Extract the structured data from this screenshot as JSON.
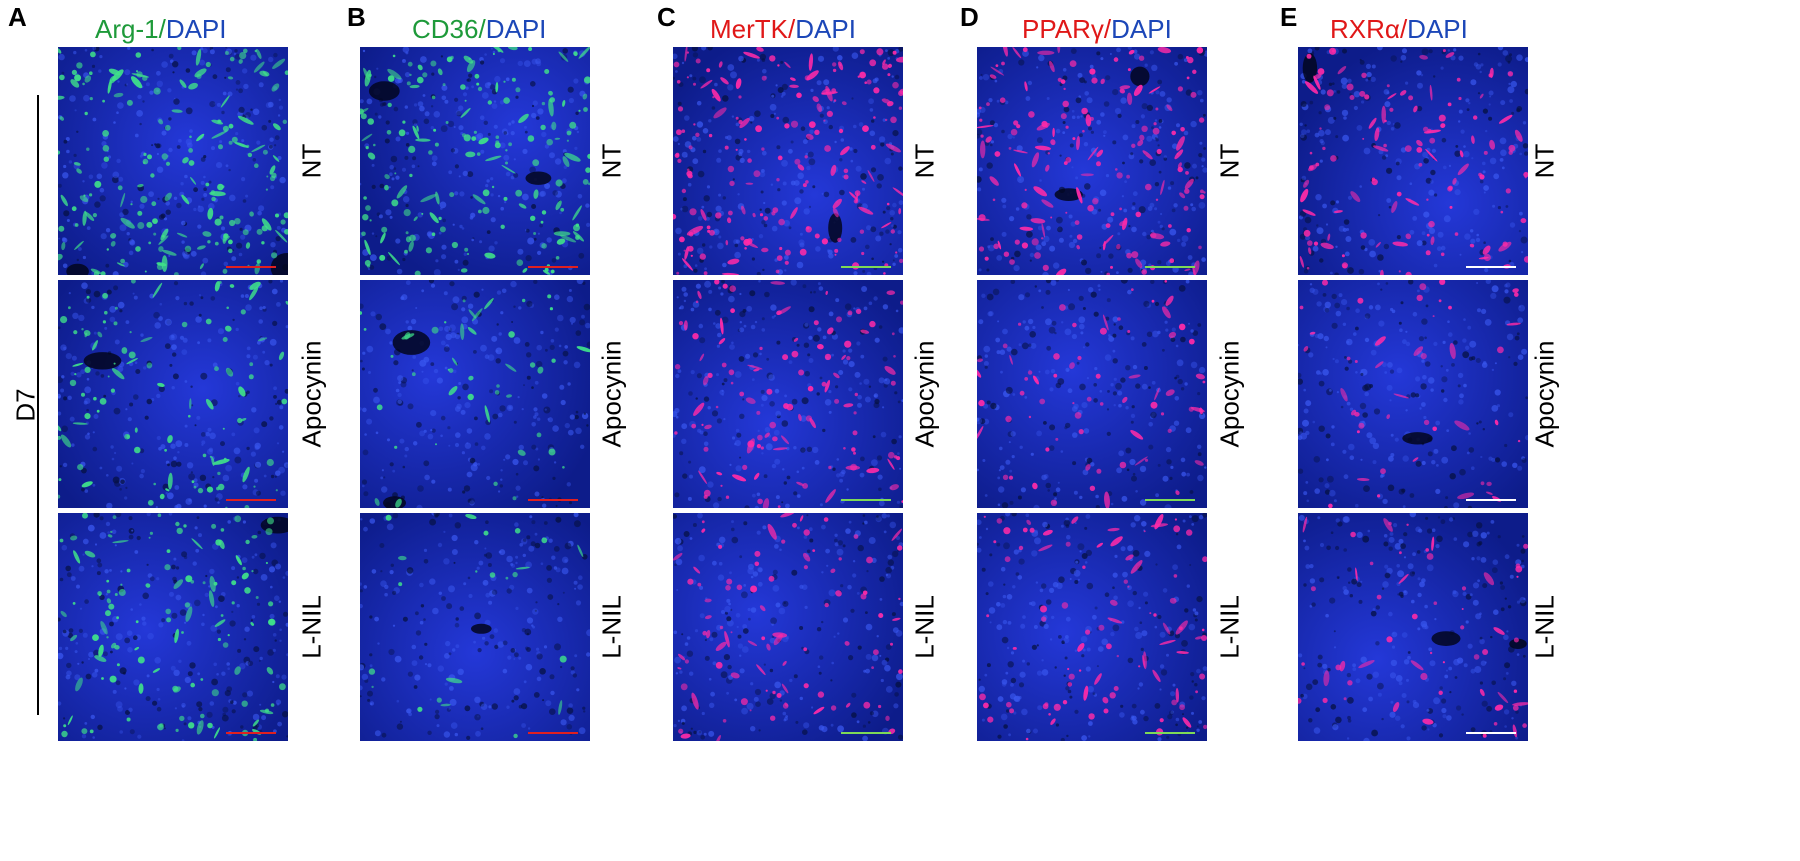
{
  "group_label": "D7",
  "colors": {
    "green_stain": "#1e9a3a",
    "red_stain": "#e01818",
    "dapi_blue": "#1c47b8",
    "scalebar_red": "#e02020",
    "scalebar_green": "#7ed957",
    "scalebar_white": "#ffffff"
  },
  "panels": [
    {
      "letter": "A",
      "marker": "Arg-1",
      "sep": "/",
      "counterstain": "DAPI",
      "marker_color": "green",
      "rows": [
        "NT",
        "Apocynin",
        "L-NIL"
      ],
      "signal": [
        0.85,
        0.45,
        0.55
      ],
      "scalebar_color": "red"
    },
    {
      "letter": "B",
      "marker": "CD36",
      "sep": "/",
      "counterstain": "DAPI",
      "marker_color": "green",
      "rows": [
        "NT",
        "Apocynin",
        "L-NIL"
      ],
      "signal": [
        0.8,
        0.2,
        0.1
      ],
      "scalebar_color": "red"
    },
    {
      "letter": "C",
      "marker": "MerTK",
      "sep": "/",
      "counterstain": "DAPI",
      "marker_color": "red",
      "rows": [
        "NT",
        "Apocynin",
        "L-NIL"
      ],
      "signal": [
        0.85,
        0.5,
        0.4
      ],
      "scalebar_color": "green"
    },
    {
      "letter": "D",
      "marker": "PPARγ",
      "sep": "/",
      "counterstain": "DAPI",
      "marker_color": "red",
      "rows": [
        "NT",
        "Apocynin",
        "L-NIL"
      ],
      "signal": [
        0.75,
        0.3,
        0.4
      ],
      "scalebar_color": "green"
    },
    {
      "letter": "E",
      "marker": "RXRα",
      "sep": "/",
      "counterstain": "DAPI",
      "marker_color": "red",
      "rows": [
        "NT",
        "Apocynin",
        "L-NIL"
      ],
      "signal": [
        0.55,
        0.2,
        0.25
      ],
      "scalebar_color": "white"
    }
  ]
}
